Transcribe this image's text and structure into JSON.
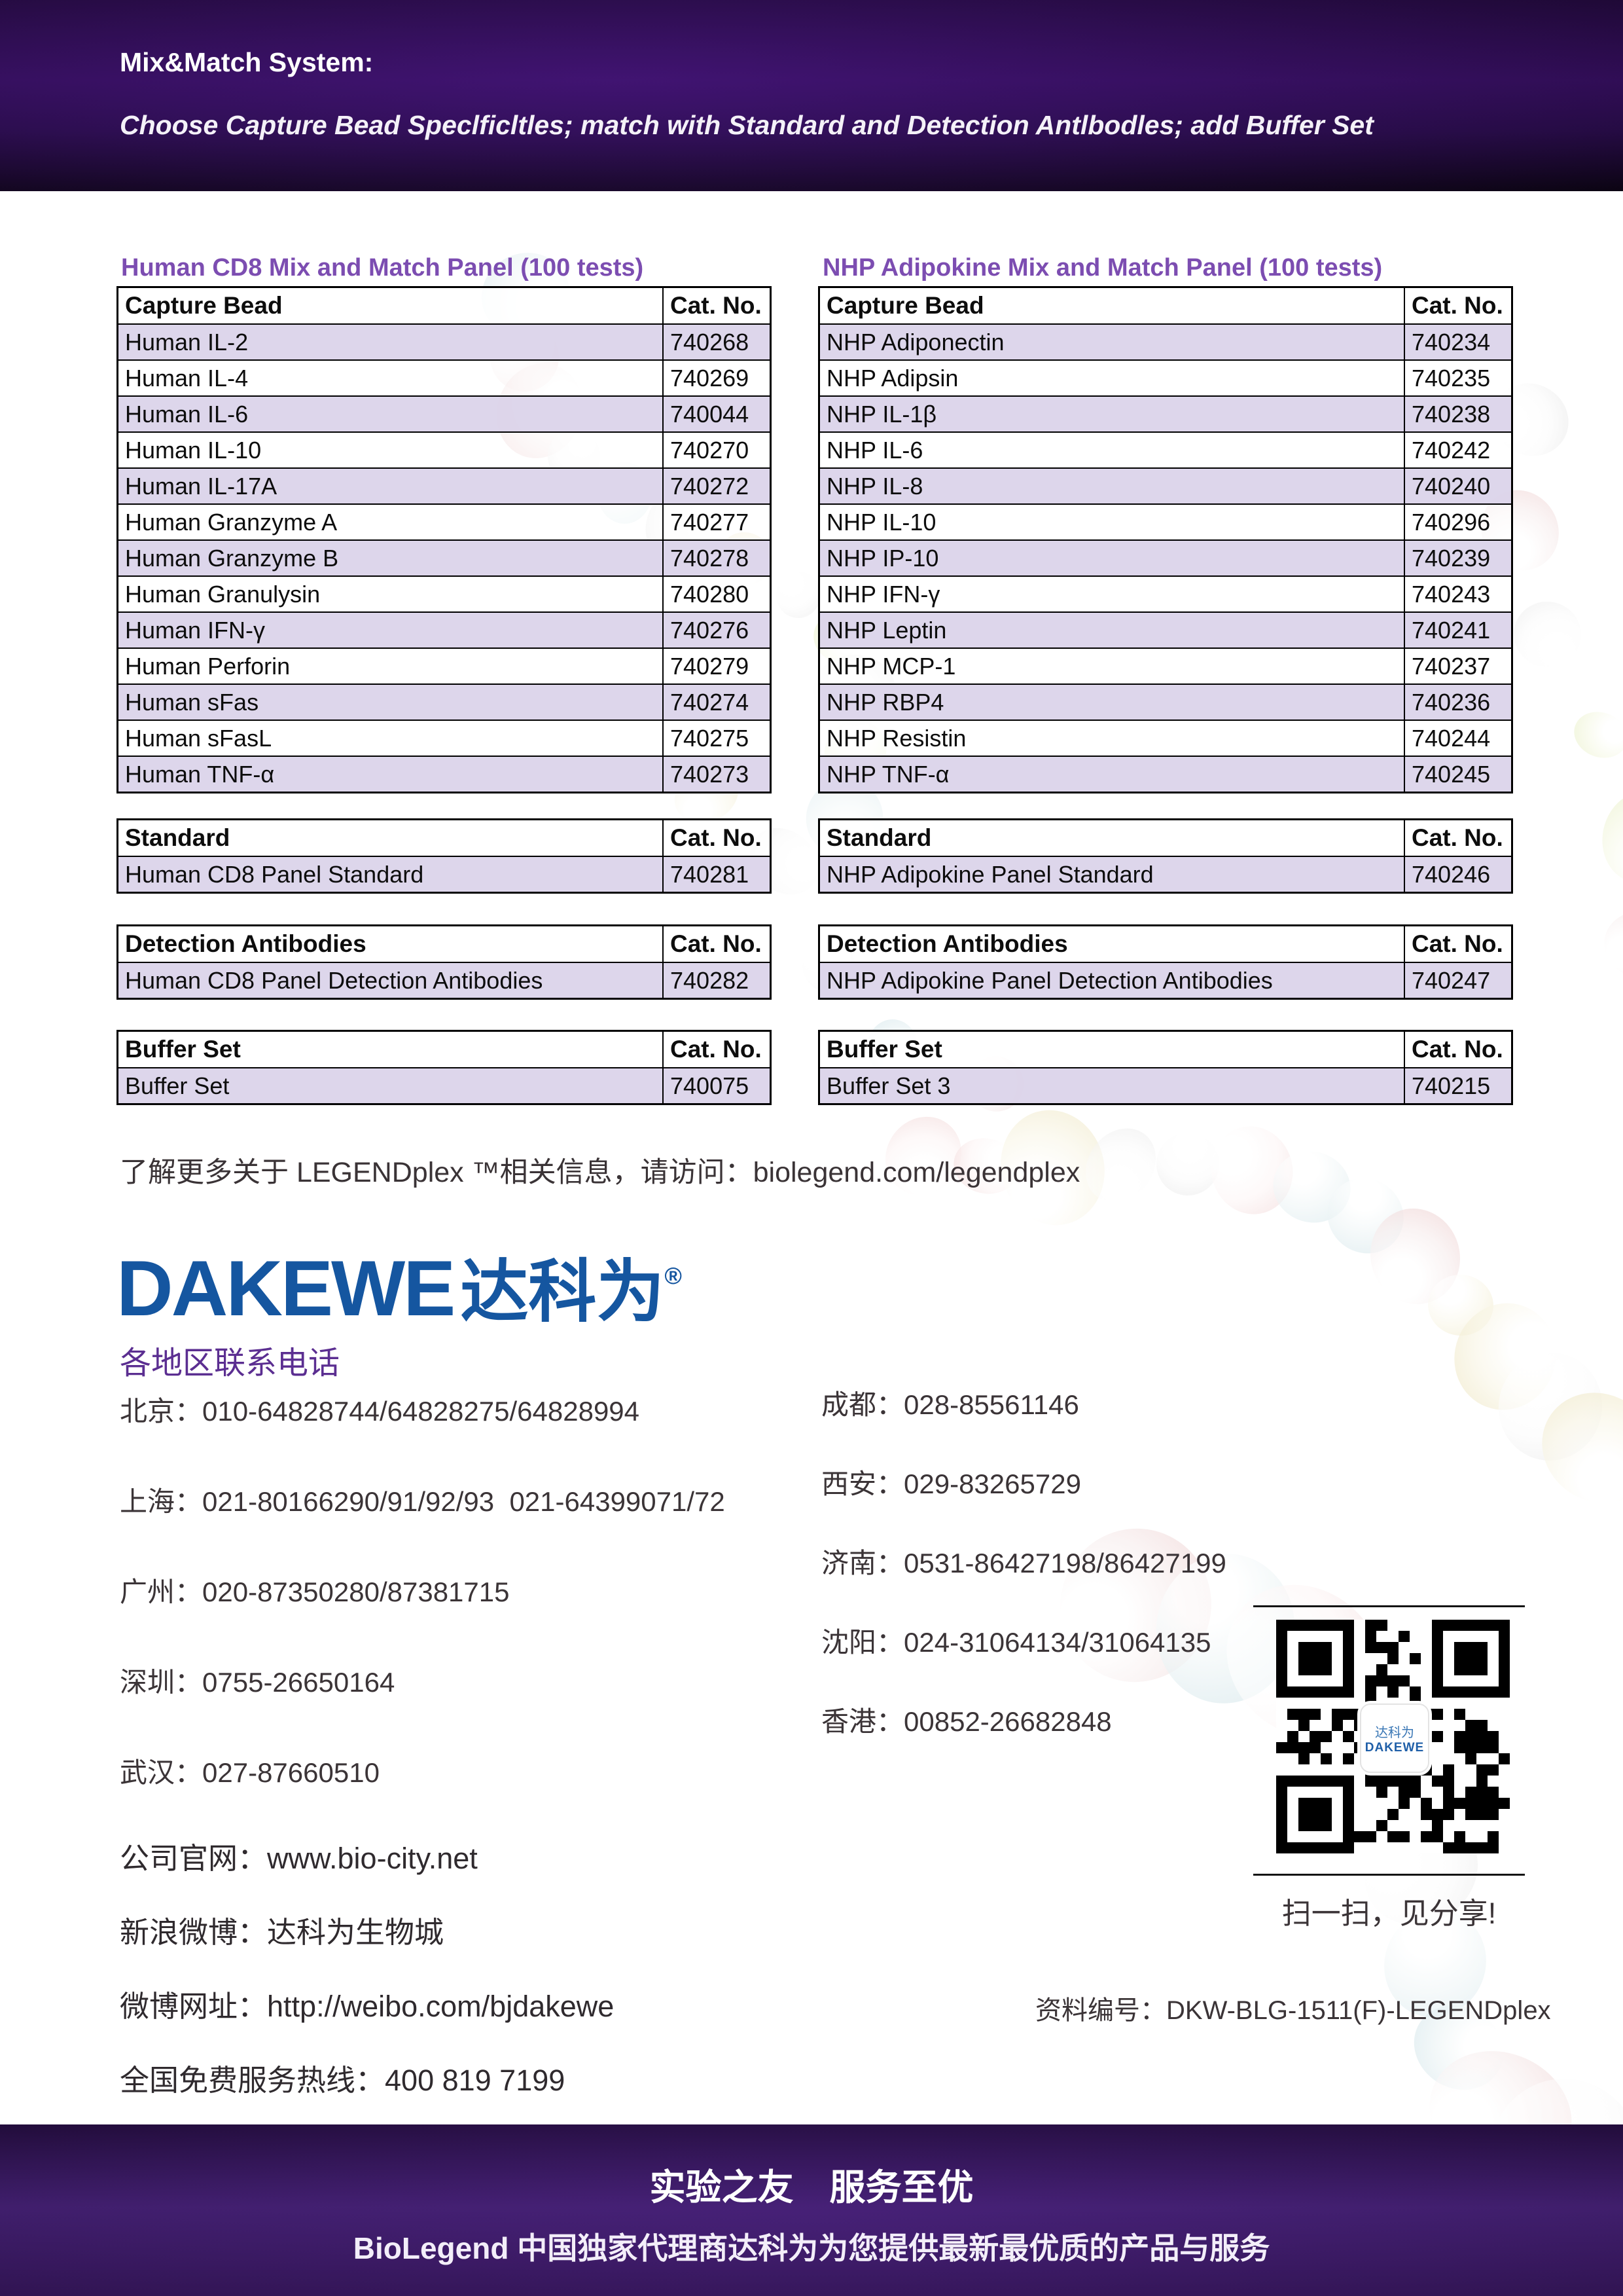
{
  "header": {
    "title": "Mix&Match System:",
    "subtitle": "Choose Capture Bead Speclficltles; match with Standard and Detection Antlbodles; add Buffer Set"
  },
  "panels": [
    {
      "title": "Human CD8 Mix and Match Panel (100 tests)",
      "columns": [
        "Capture Bead",
        "Cat. No."
      ],
      "rows": [
        [
          "Human IL-2",
          "740268"
        ],
        [
          "Human IL-4",
          "740269"
        ],
        [
          "Human IL-6",
          "740044"
        ],
        [
          "Human IL-10",
          "740270"
        ],
        [
          "Human IL-17A",
          "740272"
        ],
        [
          "Human Granzyme A",
          "740277"
        ],
        [
          "Human Granzyme B",
          "740278"
        ],
        [
          "Human Granulysin",
          "740280"
        ],
        [
          "Human IFN-γ",
          "740276"
        ],
        [
          "Human Perforin",
          "740279"
        ],
        [
          "Human sFas",
          "740274"
        ],
        [
          "Human sFasL",
          "740275"
        ],
        [
          "Human TNF-α",
          "740273"
        ]
      ],
      "standard": {
        "columns": [
          "Standard",
          "Cat. No."
        ],
        "rows": [
          [
            "Human CD8 Panel Standard",
            "740281"
          ]
        ]
      },
      "detection": {
        "columns": [
          "Detection Antibodies",
          "Cat. No."
        ],
        "rows": [
          [
            "Human CD8 Panel Detection Antibodies",
            "740282"
          ]
        ]
      },
      "buffer": {
        "columns": [
          "Buffer Set",
          "Cat. No."
        ],
        "rows": [
          [
            "Buffer Set",
            "740075"
          ]
        ]
      }
    },
    {
      "title": "NHP Adipokine Mix and Match Panel (100 tests)",
      "columns": [
        "Capture Bead",
        "Cat. No."
      ],
      "rows": [
        [
          "NHP Adiponectin",
          "740234"
        ],
        [
          "NHP Adipsin",
          "740235"
        ],
        [
          "NHP IL-1β",
          "740238"
        ],
        [
          "NHP IL-6",
          "740242"
        ],
        [
          "NHP IL-8",
          "740240"
        ],
        [
          "NHP IL-10",
          "740296"
        ],
        [
          "NHP IP-10",
          "740239"
        ],
        [
          "NHP IFN-γ",
          "740243"
        ],
        [
          "NHP Leptin",
          "740241"
        ],
        [
          "NHP MCP-1",
          "740237"
        ],
        [
          "NHP RBP4",
          "740236"
        ],
        [
          "NHP Resistin",
          "740244"
        ],
        [
          "NHP TNF-α",
          "740245"
        ]
      ],
      "standard": {
        "columns": [
          "Standard",
          "Cat. No."
        ],
        "rows": [
          [
            "NHP Adipokine Panel Standard",
            "740246"
          ]
        ]
      },
      "detection": {
        "columns": [
          "Detection Antibodies",
          "Cat. No."
        ],
        "rows": [
          [
            "NHP Adipokine Panel Detection Antibodies",
            "740247"
          ]
        ]
      },
      "buffer": {
        "columns": [
          "Buffer Set",
          "Cat. No."
        ],
        "rows": [
          [
            "Buffer Set 3",
            "740215"
          ]
        ]
      }
    }
  ],
  "promo": "了解更多关于 LEGENDplex ™相关信息，请访问：biolegend.com/legendplex",
  "company": {
    "logo_en": "DAKEWE",
    "logo_cn": "达科为",
    "logo_reg": "®"
  },
  "contacts": {
    "title": "各地区联系电话",
    "left": [
      [
        "北京：",
        "010-64828744/64828275/64828994"
      ],
      [
        "上海：",
        "021-80166290/91/92/93  021-64399071/72"
      ],
      [
        "广州：",
        "020-87350280/87381715"
      ],
      [
        "深圳：",
        "0755-26650164"
      ],
      [
        "武汉：",
        "027-87660510"
      ]
    ],
    "right": [
      [
        "成都：",
        "028-85561146"
      ],
      [
        "西安：",
        "029-83265729"
      ],
      [
        "济南：",
        "0531-86427198/86427199"
      ],
      [
        "沈阳：",
        "024-31064134/31064135"
      ],
      [
        "香港：",
        "00852-26682848"
      ]
    ]
  },
  "info_lines": [
    [
      "公司官网：",
      "www.bio-city.net"
    ],
    [
      "新浪微博：",
      "达科为生物城"
    ],
    [
      "微博网址：",
      "http://weibo.com/bjdakewe"
    ],
    [
      "全国免费服务热线：",
      "400 819 7199"
    ]
  ],
  "qr": {
    "caption": "扫一扫，见分享!",
    "logo_cn": "达科为",
    "logo_en": "DAKEWE"
  },
  "doc_number": {
    "label": "资料编号：",
    "value": "DKW-BLG-1511(F)-LEGENDplex"
  },
  "footer": {
    "line1": "实验之友　服务至优",
    "line2": "BioLegend 中国独家代理商达科为为您提供最新最优质的产品与服务"
  },
  "colors": {
    "title_purple": "#7c4db1",
    "row_lavender": "#dcd6e9",
    "logo_blue": "#1556a0",
    "contact_purple": "#5b2e91",
    "header_purple": "#2d0c50"
  }
}
